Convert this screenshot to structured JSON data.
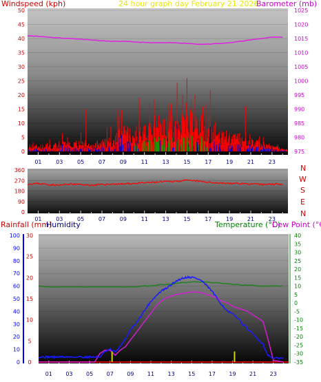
{
  "header": {
    "windspeed_label": "Windspeed (kph)",
    "title": "24 hour graph day   February 21 2026",
    "barometer_label": "Barometer (mb)"
  },
  "compass": [
    "N",
    "W",
    "S",
    "E",
    "N"
  ],
  "lower_header": {
    "rain_label": "Rainfall (mm)",
    "humidity_label": "Humidity",
    "temperature_label": "Temperature (°C)",
    "dew_label": "Dew Point (°C)"
  },
  "colors": {
    "wind": "#ff0000",
    "gust_spike": "#ff0000",
    "wind_avg": "#0000cc",
    "wind_green": "#00aa00",
    "barometer": "#e020e0",
    "direction": "#ff0000",
    "temperature": "#208020",
    "humidity": "#1a1aff",
    "dewpoint": "#d020d0",
    "rain": "#d4d400",
    "rain_axis": "#0000ff",
    "title": "#e8e800",
    "left_label": "#cc0000",
    "right_label": "#cc00cc",
    "humidity_label": "#000080",
    "temp_label": "#008000"
  },
  "x_ticks": [
    "01",
    "03",
    "05",
    "07",
    "09",
    "11",
    "13",
    "15",
    "17",
    "19",
    "21",
    "23"
  ],
  "chart_data": [
    {
      "type": "line",
      "x": [
        0,
        1,
        2,
        3,
        4,
        5,
        6,
        7,
        8,
        9,
        10,
        11,
        12,
        13,
        14,
        15,
        16,
        17,
        18,
        19,
        20,
        21,
        22,
        23,
        24
      ],
      "series": [
        {
          "name": "Barometer",
          "axis": "right",
          "values": [
            1016,
            1015.8,
            1015.5,
            1015.2,
            1015,
            1014.8,
            1014.5,
            1014.2,
            1014,
            1014,
            1013.8,
            1013.6,
            1013.5,
            1013.5,
            1013.5,
            1013.3,
            1013,
            1013,
            1013.2,
            1013.5,
            1014,
            1014.5,
            1015,
            1015.5,
            1015.5
          ]
        },
        {
          "name": "Windspeed",
          "axis": "left",
          "values": [
            3,
            2,
            2,
            3,
            3,
            3,
            2,
            4,
            5,
            7,
            8,
            9,
            10,
            10,
            11,
            12,
            12,
            10,
            7,
            6,
            5,
            4,
            3,
            2,
            1
          ]
        }
      ],
      "gusts": [
        [
          5.5,
          15
        ],
        [
          8.5,
          15
        ],
        [
          10.5,
          19
        ],
        [
          11.5,
          17
        ],
        [
          13.5,
          17
        ],
        [
          14.6,
          20
        ],
        [
          15,
          26
        ],
        [
          15.4,
          18
        ],
        [
          16.8,
          17
        ],
        [
          20.5,
          16
        ]
      ],
      "left_axis": {
        "ticks": [
          0,
          5,
          10,
          15,
          20,
          25,
          30,
          35,
          40,
          45,
          50
        ],
        "ylim": [
          0,
          50
        ]
      },
      "right_axis": {
        "ticks": [
          975,
          980,
          985,
          990,
          995,
          1000,
          1005,
          1010,
          1015,
          1020,
          1025
        ],
        "ylim": [
          975,
          1025
        ]
      },
      "xlim": [
        0,
        24.5
      ]
    },
    {
      "type": "line",
      "x": [
        0,
        1,
        2,
        3,
        4,
        5,
        6,
        7,
        8,
        9,
        10,
        11,
        12,
        13,
        14,
        15,
        16,
        17,
        18,
        19,
        20,
        21,
        22,
        23,
        24
      ],
      "series": [
        {
          "name": "Wind direction",
          "values": [
            240,
            245,
            235,
            230,
            240,
            235,
            230,
            235,
            240,
            240,
            245,
            250,
            255,
            260,
            265,
            270,
            265,
            255,
            250,
            245,
            245,
            240,
            235,
            240,
            240
          ]
        }
      ],
      "left_axis": {
        "ticks": [
          0,
          90,
          180,
          270,
          360
        ],
        "ylim": [
          0,
          360
        ]
      },
      "xlim": [
        0,
        24.5
      ]
    },
    {
      "type": "line",
      "x": [
        0,
        1,
        2,
        3,
        4,
        5,
        5.5,
        6,
        6.5,
        7,
        7.5,
        8,
        8.5,
        9,
        9.5,
        10,
        10.5,
        11,
        11.5,
        12,
        12.5,
        13,
        13.5,
        14,
        14.5,
        15,
        15.5,
        16,
        16.5,
        17,
        17.5,
        18,
        18.5,
        19,
        19.5,
        20,
        20.5,
        21,
        21.5,
        22,
        22.5,
        23,
        24
      ],
      "series": [
        {
          "name": "Temperature",
          "axis": "right",
          "values": [
            10,
            9.5,
            9.5,
            9.5,
            9.5,
            9.5,
            9.5,
            9.5,
            9.5,
            9.5,
            9.5,
            9.5,
            9.5,
            9.5,
            9.5,
            10,
            10,
            10,
            10.5,
            11,
            11,
            11,
            11.5,
            12,
            12,
            12.5,
            12.5,
            12.5,
            12.5,
            12,
            12,
            11.5,
            11.5,
            11,
            11,
            10.5,
            10.5,
            10.5,
            10,
            10,
            10,
            10,
            10
          ]
        },
        {
          "name": "Dew Point",
          "axis": "right",
          "values": [
            -35,
            -35,
            -35,
            -35,
            -35,
            -35,
            -35,
            -30,
            -28,
            -28,
            -31,
            -28,
            -26,
            -22,
            -18,
            -14,
            -10,
            -6,
            -2,
            1,
            3,
            4,
            5,
            5.5,
            6,
            6.5,
            6.5,
            6,
            5,
            4,
            3,
            1,
            0,
            -2,
            -3,
            -4,
            -5,
            -7,
            -9,
            -11,
            -22,
            -34,
            -35
          ]
        },
        {
          "name": "Humidity",
          "axis": "left",
          "values": [
            4,
            4,
            4,
            4,
            4,
            4,
            4,
            4,
            8,
            10,
            8,
            12,
            18,
            26,
            30,
            36,
            42,
            48,
            52,
            56,
            58,
            61,
            64,
            66,
            67,
            67,
            66,
            64,
            60,
            56,
            50,
            45,
            40,
            38,
            35,
            30,
            26,
            22,
            18,
            14,
            5,
            3,
            3
          ]
        }
      ],
      "rainfall": [
        [
          7.2,
          2.5
        ],
        [
          19.2,
          2.5
        ]
      ],
      "left_axis_humidity": {
        "ticks": [
          0,
          10,
          20,
          30,
          40,
          50,
          60,
          70,
          80,
          90,
          100
        ],
        "ylim": [
          0,
          100
        ]
      },
      "left_axis_rain": {
        "ticks": [
          0,
          5,
          10,
          15,
          20,
          25,
          30
        ],
        "ylim": [
          0,
          30
        ]
      },
      "right_axis": {
        "ticks": [
          -35,
          -30,
          -25,
          -20,
          -15,
          -10,
          -5,
          0,
          5,
          10,
          15,
          20,
          25,
          30,
          35,
          40
        ],
        "ylim": [
          -35,
          40
        ]
      },
      "xlim": [
        0,
        24.5
      ]
    }
  ]
}
